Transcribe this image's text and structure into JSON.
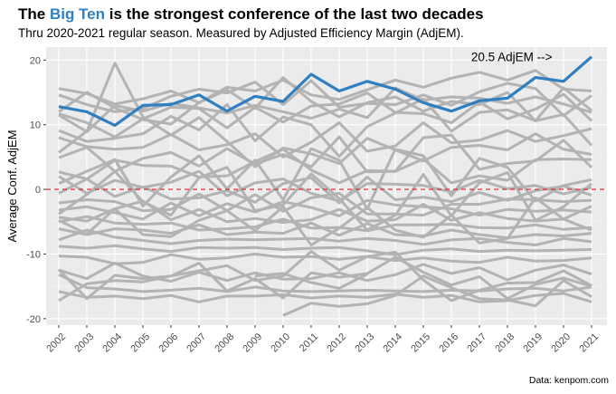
{
  "header": {
    "title_prefix": "The ",
    "title_highlight": "Big Ten",
    "title_suffix": " is the strongest conference of the last two decades",
    "subtitle": "Thru 2020-2021 regular season. Measured by Adjusted Efficiency Margin (AdjEM).",
    "caption": "Data: kenpom.com"
  },
  "colors": {
    "highlight": "#2f7fc1",
    "background_lines": "#b3b3b3",
    "panel": "#ebebeb",
    "reference_line": "#e41a1c"
  },
  "chart_data": {
    "type": "line",
    "title": "The Big Ten is the strongest conference of the last two decades",
    "subtitle": "Thru 2020-2021 regular season. Measured by Adjusted Efficiency Margin (AdjEM).",
    "xlabel": "",
    "ylabel": "Average Conf. AdjEM",
    "x": [
      2002,
      2003,
      2004,
      2005,
      2006,
      2007,
      2008,
      2009,
      2010,
      2011,
      2012,
      2013,
      2014,
      2015,
      2016,
      2017,
      2018,
      2019,
      2020,
      2021
    ],
    "xlim": [
      2001.55,
      2021.55
    ],
    "ylim": [
      -21,
      22
    ],
    "yticks": [
      -20,
      -10,
      0,
      10,
      20
    ],
    "grid": true,
    "legend": "none",
    "reference_line": 0,
    "annotation": {
      "text": "20.5 AdjEM -->",
      "x": 2019.6,
      "y": 20.5
    },
    "highlight_series": {
      "name": "Big Ten",
      "values": [
        12.8,
        12.0,
        9.9,
        13.0,
        13.1,
        14.6,
        12.1,
        14.4,
        13.6,
        17.8,
        15.2,
        16.7,
        15.5,
        13.4,
        12.1,
        13.7,
        14.1,
        17.3,
        16.7,
        20.5
      ]
    },
    "other_series": [
      {
        "values": [
          15.6,
          14.8,
          13.2,
          14.0,
          15.2,
          13.4,
          15.8,
          15.2,
          16.9,
          14.6,
          13.9,
          15.4,
          16.9,
          15.8,
          17.2,
          18.1,
          16.9,
          18.4,
          15.5,
          15.2
        ]
      },
      {
        "values": [
          14.6,
          13.1,
          12.0,
          12.5,
          14.4,
          15.5,
          14.9,
          16.6,
          13.1,
          16.8,
          12.7,
          13.3,
          13.1,
          14.6,
          13.0,
          15.1,
          16.4,
          15.6,
          11.4,
          14.5
        ]
      },
      {
        "values": [
          12.0,
          15.0,
          12.6,
          10.8,
          10.1,
          13.4,
          15.4,
          12.5,
          17.3,
          13.6,
          11.2,
          13.4,
          14.3,
          12.1,
          13.6,
          13.1,
          15.0,
          10.6,
          15.7,
          12.2
        ]
      },
      {
        "values": [
          11.5,
          8.9,
          13.0,
          12.1,
          13.3,
          12.6,
          11.8,
          13.0,
          12.0,
          11.0,
          12.4,
          11.1,
          15.7,
          13.8,
          14.3,
          14.1,
          13.3,
          14.3,
          13.2,
          11.9
        ]
      },
      {
        "values": [
          9.1,
          7.4,
          7.9,
          8.6,
          11.3,
          9.2,
          13.1,
          7.5,
          11.2,
          10.0,
          5.1,
          9.7,
          11.8,
          14.0,
          9.0,
          11.9,
          12.3,
          10.6,
          11.6,
          6.8
        ]
      },
      {
        "values": [
          8.0,
          6.6,
          6.2,
          6.5,
          8.5,
          6.1,
          6.9,
          8.6,
          5.0,
          7.3,
          10.3,
          5.9,
          6.7,
          10.3,
          7.2,
          7.6,
          9.1,
          7.4,
          8.3,
          9.4
        ]
      },
      {
        "values": [
          5.7,
          9.0,
          19.5,
          11.2,
          8.4,
          11.1,
          7.4,
          3.5,
          6.4,
          5.5,
          4.0,
          7.9,
          6.1,
          4.4,
          6.5,
          6.8,
          6.1,
          8.6,
          6.2,
          5.4
        ]
      },
      {
        "values": [
          4.9,
          6.5,
          2.8,
          4.8,
          5.7,
          3.6,
          6.3,
          3.9,
          5.4,
          3.5,
          8.1,
          2.7,
          2.8,
          8.0,
          8.4,
          3.1,
          4.0,
          4.4,
          7.6,
          3.4
        ]
      },
      {
        "values": [
          2.7,
          1.6,
          4.5,
          3.7,
          3.6,
          1.9,
          2.1,
          4.3,
          6.2,
          3.0,
          1.0,
          2.9,
          2.8,
          4.7,
          1.0,
          2.1,
          1.4,
          4.6,
          4.7,
          4.6
        ]
      },
      {
        "values": [
          2.0,
          -0.6,
          1.4,
          0.3,
          1.1,
          2.8,
          -1.0,
          1.0,
          1.6,
          -0.6,
          -1.8,
          0.9,
          0.8,
          0.6,
          -0.4,
          1.4,
          0.1,
          0.6,
          -0.7,
          0.3
        ]
      },
      {
        "values": [
          -0.6,
          1.6,
          -1.1,
          0.4,
          -1.5,
          -1.3,
          -0.2,
          -2.0,
          0.9,
          1.8,
          -2.1,
          1.9,
          -1.6,
          -1.2,
          -1.9,
          -0.5,
          -1.7,
          -0.2,
          0.5,
          -0.9
        ]
      },
      {
        "values": [
          -2.1,
          -1.6,
          -1.9,
          -3.3,
          -3.1,
          -0.7,
          -3.3,
          -0.8,
          -3.4,
          -1.3,
          -0.6,
          -3.8,
          -3.8,
          -4.0,
          -2.3,
          -2.3,
          -1.5,
          -1.6,
          -1.9,
          -1.7
        ]
      },
      {
        "values": [
          -3.2,
          -2.7,
          -3.6,
          -4.6,
          -2.1,
          -4.1,
          -2.2,
          -3.5,
          -1.9,
          -2.8,
          -4.1,
          -1.7,
          -2.4,
          -2.7,
          -3.0,
          -4.0,
          -3.1,
          -3.4,
          -3.2,
          -3.5
        ]
      },
      {
        "values": [
          -4.3,
          -4.9,
          -3.0,
          -1.8,
          -4.7,
          -3.1,
          -5.0,
          -4.5,
          -5.1,
          -4.7,
          -3.1,
          -4.9,
          -4.7,
          -2.3,
          -4.8,
          -3.6,
          -4.5,
          -4.9,
          -4.6,
          -2.6
        ]
      },
      {
        "values": [
          -5.0,
          -4.2,
          -5.2,
          -5.4,
          -5.2,
          -6.3,
          -6.1,
          -5.8,
          -4.6,
          -6.0,
          -5.9,
          -6.4,
          -5.5,
          -5.5,
          -5.4,
          -5.9,
          -6.0,
          -5.5,
          -6.2,
          -5.9
        ]
      },
      {
        "values": [
          -6.1,
          -7.0,
          -6.1,
          -6.3,
          -6.8,
          -5.5,
          -7.0,
          -6.6,
          -6.8,
          -5.2,
          -7.1,
          -5.3,
          -7.0,
          -7.2,
          -6.3,
          -7.0,
          -7.5,
          -7.0,
          -7.2,
          -6.8
        ]
      },
      {
        "values": [
          -7.8,
          -6.3,
          -7.4,
          -7.9,
          -8.4,
          -7.9,
          -7.7,
          -7.8,
          -7.7,
          -7.6,
          -8.0,
          -7.6,
          -7.9,
          -8.5,
          -7.8,
          -7.6,
          -8.2,
          -8.6,
          -7.6,
          -8.1
        ]
      },
      {
        "values": [
          -8.8,
          -9.1,
          -8.7,
          -9.2,
          -9.6,
          -9.0,
          -9.1,
          -9.0,
          -9.3,
          -9.1,
          -9.0,
          -9.5,
          -10.1,
          -9.4,
          -9.2,
          -9.6,
          -9.4,
          -9.5,
          -9.4,
          -9.3
        ]
      },
      {
        "values": [
          -10.3,
          -10.5,
          -11.5,
          -11.3,
          -10.1,
          -10.8,
          -10.6,
          -10.0,
          -10.5,
          -10.4,
          -10.8,
          -10.4,
          -11.0,
          -10.6,
          -11.1,
          -11.3,
          -10.5,
          -11.1,
          -11.0,
          -10.6
        ]
      },
      {
        "values": [
          -12.5,
          -13.8,
          -11.4,
          -13.4,
          -14.2,
          -12.8,
          -14.1,
          -12.9,
          -13.9,
          -13.8,
          -12.9,
          -14.1,
          -13.2,
          -11.6,
          -13.0,
          -12.1,
          -14.0,
          -12.5,
          -11.7,
          -13.1
        ]
      },
      {
        "values": [
          -13.2,
          -15.2,
          -15.4,
          -15.8,
          -15.6,
          -15.3,
          -15.8,
          -15.1,
          -15.7,
          -15.8,
          -15.7,
          -15.6,
          -15.7,
          -15.8,
          -15.6,
          -15.7,
          -15.4,
          -15.3,
          -15.7,
          -15.1
        ]
      },
      {
        "values": [
          -15.8,
          -16.7,
          -16.5,
          -16.9,
          -16.4,
          -17.4,
          -16.5,
          -16.5,
          -16.3,
          -16.8,
          -16.5,
          -16.7,
          -16.2,
          -16.7,
          -16.4,
          -17.4,
          -17.2,
          -16.4,
          -16.1,
          -17.4
        ]
      },
      {
        "values": [
          -17.2,
          -14.6,
          -14.1,
          -14.3,
          -13.4,
          -12.6,
          -11.8,
          -14.1,
          -13.4,
          -9.6,
          -12.5,
          -10.4,
          -9.7,
          -14.0,
          -17.2,
          -15.6,
          -14.5,
          -14.4,
          -12.6,
          -14.9
        ]
      },
      {
        "values": [
          -12.4,
          -16.9,
          -13.3,
          -13.8,
          -13.4,
          -11.4,
          -15.7,
          -13.8,
          -16.8,
          -12.9,
          -13.6,
          -13.0,
          -10.5,
          -12.8,
          -14.8,
          -13.5,
          -16.9,
          -14.7,
          -13.7,
          -15.0
        ]
      },
      {
        "values": [
          -4.8,
          -6.9,
          -3.0,
          -7.0,
          -7.3,
          -4.8,
          -3.3,
          -6.4,
          -2.7,
          -8.6,
          -6.0,
          -2.8,
          -6.3,
          -7.4,
          -4.0,
          -8.3,
          -7.6,
          -1.3,
          -4.6,
          -6.3
        ]
      },
      {
        "values": [
          0.9,
          2.8,
          4.6,
          -2.6,
          1.9,
          5.2,
          0.1,
          4.5,
          -1.6,
          6.3,
          4.5,
          -3.0,
          6.2,
          5.2,
          -1.0,
          4.8,
          3.4,
          -1.8,
          0.6,
          1.5
        ]
      },
      {
        "values": [
          11.7,
          10.3,
          8.1,
          10.9,
          12.7,
          12.5,
          9.5,
          12.7,
          10.4,
          12.9,
          13.2,
          14.9,
          11.9,
          11.7,
          10.3,
          13.5,
          10.9,
          12.4,
          14.7,
          10.6
        ]
      },
      {
        "values": [
          null,
          null,
          null,
          null,
          null,
          null,
          null,
          null,
          -19.5,
          -17.6,
          -18.1,
          -17.7,
          -16.4,
          -13.4,
          -15.2,
          -16.9,
          -17.1,
          -18.0,
          -14.1,
          -16.6
        ]
      },
      {
        "values": [
          null,
          null,
          null,
          null,
          null,
          null,
          null,
          -13.4,
          -13.0,
          -14.4,
          -15.3,
          -13.1,
          null,
          null,
          null,
          null,
          null,
          null,
          null,
          null
        ]
      },
      {
        "values": [
          -3.8,
          -0.8,
          2.8,
          -1.9,
          -4.0,
          1.8,
          3.4,
          -3.3,
          -2.4,
          2.4,
          -1.4,
          -6.3,
          -4.0,
          2.3,
          -4.1,
          1.0,
          2.6,
          -4.8,
          -2.7,
          0.9
        ]
      }
    ]
  }
}
